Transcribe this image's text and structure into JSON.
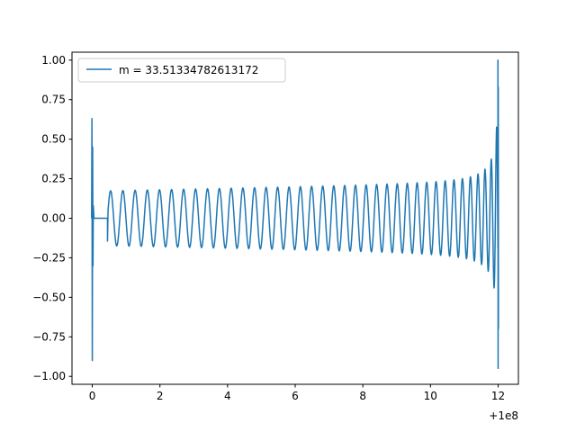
{
  "chart_data": {
    "type": "line",
    "title": "",
    "xlabel": "",
    "ylabel": "",
    "x_offset_label": "+1e8",
    "xlim": [
      -0.6,
      12.6
    ],
    "ylim": [
      -1.05,
      1.05
    ],
    "x_ticks": [
      0,
      2,
      4,
      6,
      8,
      10,
      12
    ],
    "x_tick_labels": [
      "0",
      "2",
      "4",
      "6",
      "8",
      "10",
      "12"
    ],
    "y_ticks": [
      -1.0,
      -0.75,
      -0.5,
      -0.25,
      0.0,
      0.25,
      0.5,
      0.75,
      1.0
    ],
    "y_tick_labels": [
      "−1.00",
      "−0.75",
      "−0.50",
      "−0.25",
      "0.00",
      "0.25",
      "0.50",
      "0.75",
      "1.00"
    ],
    "grid": false,
    "legend_position": "top-left",
    "series": [
      {
        "name": "m = 33.51334782613172",
        "color": "#1f77b4",
        "features": {
          "initial_spike": {
            "x": 0.0,
            "y_max": 0.63,
            "y_min": -0.9
          },
          "flat_segment": {
            "x_start": 0.1,
            "x_end": 0.45,
            "y": 0.0
          },
          "oscillation_start_x": 0.45,
          "oscillation_start_amplitude": 0.17,
          "mid_amplitude_at_x8": 0.22,
          "amplitude_at_x11": 0.33,
          "final_spike": {
            "x": 12.0,
            "y_max": 1.0,
            "y_min": -0.95
          }
        }
      }
    ]
  }
}
